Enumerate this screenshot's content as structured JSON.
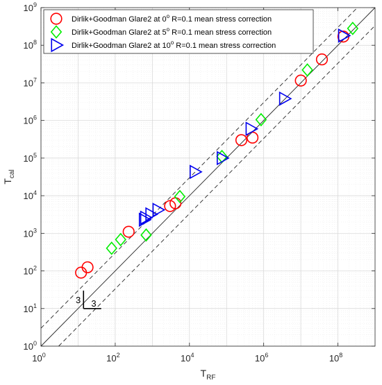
{
  "chart_data": {
    "type": "scatter",
    "title": "",
    "xlabel": {
      "main": "T",
      "sub": "RF"
    },
    "ylabel": {
      "main": "T",
      "sub": "cal"
    },
    "x_scale": "log",
    "y_scale": "log",
    "xlim": [
      1,
      1000000000
    ],
    "ylim": [
      1,
      1000000000
    ],
    "x_ticks": [
      {
        "value": 1,
        "base": "10",
        "exp": "0"
      },
      {
        "value": 100,
        "base": "10",
        "exp": "2"
      },
      {
        "value": 10000,
        "base": "10",
        "exp": "4"
      },
      {
        "value": 1000000,
        "base": "10",
        "exp": "6"
      },
      {
        "value": 100000000,
        "base": "10",
        "exp": "8"
      }
    ],
    "y_ticks": [
      {
        "value": 1,
        "base": "10",
        "exp": "0"
      },
      {
        "value": 10,
        "base": "10",
        "exp": "1"
      },
      {
        "value": 100,
        "base": "10",
        "exp": "2"
      },
      {
        "value": 1000,
        "base": "10",
        "exp": "3"
      },
      {
        "value": 10000,
        "base": "10",
        "exp": "4"
      },
      {
        "value": 100000,
        "base": "10",
        "exp": "5"
      },
      {
        "value": 1000000,
        "base": "10",
        "exp": "6"
      },
      {
        "value": 10000000,
        "base": "10",
        "exp": "7"
      },
      {
        "value": 100000000,
        "base": "10",
        "exp": "8"
      },
      {
        "value": 1000000000,
        "base": "10",
        "exp": "9"
      }
    ],
    "grid": true,
    "legend_position": "top-left",
    "reference_lines": [
      {
        "kind": "solid",
        "factor": 1
      },
      {
        "kind": "dashed",
        "factor": 3
      },
      {
        "kind": "dashed",
        "factor": 0.3333
      }
    ],
    "scale_annotation": {
      "label_vertical": "3",
      "label_horizontal": "3",
      "anchor_x": 14,
      "anchor_y": 10
    },
    "series": [
      {
        "name": "Dirlik+Goodman Glare2 at 0",
        "deg": "o",
        "name_suffix": " R=0.1 mean stress correction",
        "marker": "circle",
        "color": "#ff0000",
        "points": [
          [
            12,
            90
          ],
          [
            18,
            125
          ],
          [
            230,
            1100
          ],
          [
            3000,
            5300
          ],
          [
            4200,
            6300
          ],
          [
            250000,
            300000
          ],
          [
            500000,
            350000
          ],
          [
            10000000,
            11500000
          ],
          [
            37000000,
            42000000
          ],
          [
            140000000,
            170000000
          ]
        ]
      },
      {
        "name": "Dirlik+Goodman Glare2 at 5",
        "deg": "o",
        "name_suffix": " R=0.1 mean stress correction",
        "marker": "diamond",
        "color": "#00ee00",
        "points": [
          [
            80,
            400
          ],
          [
            140,
            680
          ],
          [
            680,
            900
          ],
          [
            5500,
            9500
          ],
          [
            75000,
            110000
          ],
          [
            850000,
            1050000
          ],
          [
            15000000,
            22000000
          ],
          [
            250000000,
            280000000
          ]
        ]
      },
      {
        "name": "Dirlik+Goodman Glare2 at 10",
        "deg": "o",
        "name_suffix": " R=0.1 mean stress correction",
        "marker": "triangle-right",
        "color": "#0000ee",
        "points": [
          [
            600,
            2300
          ],
          [
            650,
            2600
          ],
          [
            900,
            3200
          ],
          [
            1400,
            4200
          ],
          [
            14000,
            43000
          ],
          [
            75000,
            100000
          ],
          [
            450000,
            600000
          ],
          [
            3600000,
            3800000
          ],
          [
            140000000,
            180000000
          ]
        ]
      }
    ]
  }
}
